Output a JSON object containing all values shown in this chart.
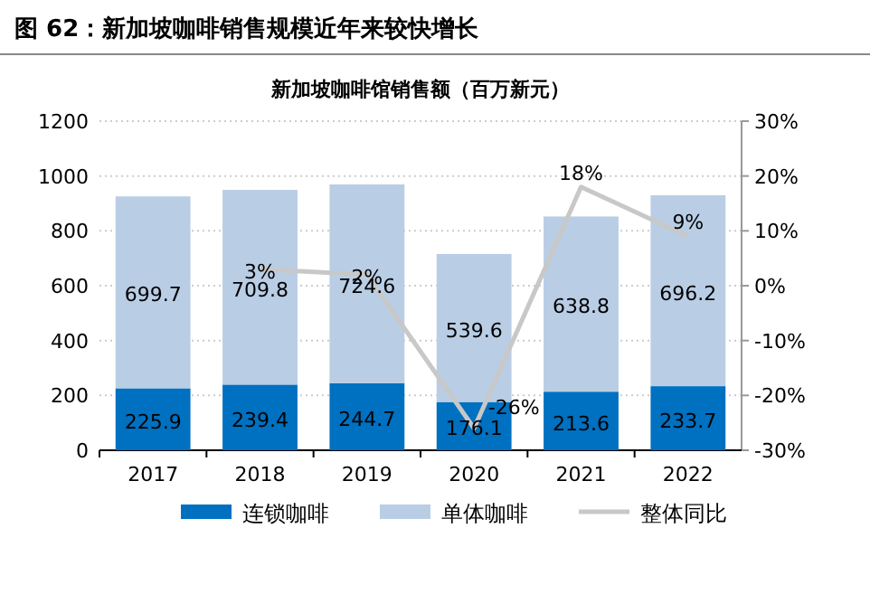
{
  "chart_data": {
    "type": "bar",
    "title": "图 62：新加坡咖啡销售规模近年来较快增长",
    "subtitle": "新加坡咖啡馆销售额（百万新元）",
    "categories": [
      "2017",
      "2018",
      "2019",
      "2020",
      "2021",
      "2022"
    ],
    "stacked": true,
    "series": [
      {
        "name": "连锁咖啡",
        "color": "#0070c0",
        "values": [
          225.9,
          239.4,
          244.7,
          176.1,
          213.6,
          233.7
        ],
        "value_labels": [
          "225.9",
          "239.4",
          "244.7",
          "176.1",
          "213.6",
          "233.7"
        ]
      },
      {
        "name": "单体咖啡",
        "color": "#b9cde5",
        "values": [
          699.7,
          709.8,
          724.6,
          539.6,
          638.8,
          696.2
        ],
        "value_labels": [
          "699.7",
          "709.8",
          "724.6",
          "539.6",
          "638.8",
          "696.2"
        ]
      },
      {
        "name": "整体同比",
        "type": "line",
        "axis": "y2",
        "color": "#c8c8c8",
        "values": [
          null,
          3,
          2,
          -26,
          18,
          9
        ],
        "value_labels": [
          null,
          "3%",
          "2%",
          "-26%",
          "18%",
          "9%"
        ]
      }
    ],
    "ylim": [
      0,
      1200
    ],
    "yticks": [
      0,
      200,
      400,
      600,
      800,
      1000,
      1200
    ],
    "y2lim": [
      -30,
      30
    ],
    "y2ticks": [
      {
        "value": -30,
        "label": "-30%"
      },
      {
        "value": -20,
        "label": "-20%"
      },
      {
        "value": -10,
        "label": "-10%"
      },
      {
        "value": 0,
        "label": "0%"
      },
      {
        "value": 10,
        "label": "10%"
      },
      {
        "value": 20,
        "label": "20%"
      },
      {
        "value": 30,
        "label": "30%"
      }
    ],
    "grid": "y",
    "legend": "bottom"
  }
}
